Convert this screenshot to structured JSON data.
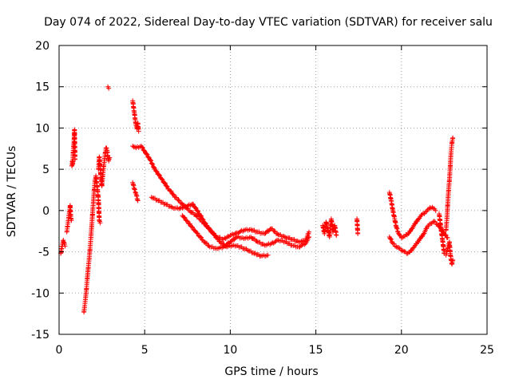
{
  "chart_data": {
    "type": "scatter",
    "title": "Day 074 of 2022, Sidereal Day-to-day VTEC variation (SDTVAR) for receiver salu",
    "xlabel": "GPS time / hours",
    "ylabel": "SDTVAR / TECUs",
    "xlim": [
      0,
      25
    ],
    "ylim": [
      -15,
      20
    ],
    "xticks": [
      0,
      5,
      10,
      15,
      20,
      25
    ],
    "xtick_labels": [
      "0",
      "5",
      "10",
      "15",
      "20",
      "25"
    ],
    "yticks": [
      -15,
      -10,
      -5,
      0,
      5,
      10,
      15,
      20
    ],
    "ytick_labels": [
      "-15",
      "-10",
      "-5",
      "0",
      "5",
      "10",
      "15",
      "20"
    ],
    "grid": true,
    "marker": "+",
    "series": [
      {
        "name": "SDTVAR",
        "color": "#ff0000",
        "segments": [
          [
            [
              0.1,
              -5.2
            ],
            [
              0.15,
              -4.6
            ],
            [
              0.2,
              -4.1
            ],
            [
              0.25,
              -3.6
            ],
            [
              0.3,
              -3.9
            ],
            [
              0.35,
              -4.3
            ]
          ],
          [
            [
              0.45,
              -2.6
            ],
            [
              0.5,
              -1.9
            ],
            [
              0.55,
              -1.0
            ],
            [
              0.6,
              -0.2
            ],
            [
              0.65,
              0.6
            ],
            [
              0.68,
              -0.7
            ],
            [
              0.72,
              -1.2
            ]
          ],
          [
            [
              0.75,
              5.4
            ],
            [
              0.78,
              6.0
            ],
            [
              0.8,
              5.6
            ],
            [
              0.82,
              7.0
            ],
            [
              0.85,
              7.8
            ],
            [
              0.88,
              8.7
            ],
            [
              0.9,
              9.8
            ],
            [
              0.93,
              6.2
            ]
          ],
          [
            [
              1.45,
              -12.3
            ],
            [
              1.5,
              -11.5
            ],
            [
              1.55,
              -10.5
            ],
            [
              1.6,
              -9.5
            ],
            [
              1.65,
              -8.2
            ],
            [
              1.7,
              -7.0
            ],
            [
              1.75,
              -6.0
            ],
            [
              1.8,
              -4.8
            ],
            [
              1.85,
              -3.5
            ],
            [
              1.9,
              -2.0
            ],
            [
              1.95,
              -0.5
            ],
            [
              2.0,
              1.0
            ],
            [
              2.05,
              2.5
            ],
            [
              2.1,
              3.6
            ],
            [
              2.15,
              4.2
            ],
            [
              2.2,
              3.4
            ],
            [
              2.25,
              2.5
            ],
            [
              2.3,
              1.2
            ],
            [
              2.35,
              -1.2
            ],
            [
              2.4,
              -1.5
            ]
          ],
          [
            [
              2.3,
              5.0
            ],
            [
              2.35,
              6.5
            ],
            [
              2.45,
              3.8
            ],
            [
              2.5,
              3.0
            ],
            [
              2.55,
              4.2
            ],
            [
              2.6,
              5.3
            ],
            [
              2.65,
              6.1
            ],
            [
              2.7,
              7.0
            ],
            [
              2.75,
              7.6
            ],
            [
              2.8,
              7.3
            ],
            [
              2.85,
              6.6
            ],
            [
              2.9,
              6.0
            ],
            [
              2.95,
              6.4
            ]
          ],
          [
            [
              2.85,
              15.0
            ],
            [
              2.9,
              14.8
            ]
          ],
          [
            [
              4.3,
              13.3
            ],
            [
              4.35,
              12.5
            ],
            [
              4.4,
              11.8
            ],
            [
              4.45,
              11.0
            ],
            [
              4.5,
              10.3
            ],
            [
              4.55,
              9.9
            ],
            [
              4.6,
              10.6
            ],
            [
              4.65,
              9.6
            ]
          ],
          [
            [
              4.3,
              7.8
            ],
            [
              4.5,
              7.6
            ],
            [
              4.8,
              7.8
            ],
            [
              5.0,
              7.2
            ],
            [
              5.3,
              6.2
            ],
            [
              5.6,
              5.0
            ],
            [
              6.0,
              3.8
            ],
            [
              6.4,
              2.6
            ],
            [
              6.8,
              1.6
            ],
            [
              7.2,
              0.8
            ],
            [
              7.6,
              0.0
            ],
            [
              8.0,
              -0.6
            ],
            [
              8.4,
              -1.4
            ],
            [
              8.8,
              -2.3
            ],
            [
              9.2,
              -3.2
            ],
            [
              9.6,
              -3.5
            ],
            [
              10.0,
              -3.0
            ],
            [
              10.4,
              -2.7
            ],
            [
              10.8,
              -2.4
            ],
            [
              11.2,
              -2.3
            ],
            [
              11.6,
              -2.6
            ],
            [
              12.0,
              -2.8
            ],
            [
              12.4,
              -2.2
            ],
            [
              12.8,
              -2.9
            ],
            [
              13.2,
              -3.2
            ],
            [
              13.6,
              -3.5
            ],
            [
              14.0,
              -3.8
            ],
            [
              14.4,
              -3.6
            ],
            [
              14.6,
              -2.6
            ]
          ],
          [
            [
              4.3,
              3.4
            ],
            [
              4.4,
              2.6
            ],
            [
              4.5,
              2.0
            ],
            [
              4.6,
              1.2
            ]
          ],
          [
            [
              5.4,
              1.6
            ],
            [
              5.8,
              1.2
            ],
            [
              6.2,
              0.8
            ],
            [
              6.6,
              0.4
            ],
            [
              7.0,
              0.2
            ],
            [
              7.4,
              0.5
            ],
            [
              7.8,
              0.8
            ],
            [
              8.2,
              -0.4
            ],
            [
              8.6,
              -1.8
            ],
            [
              9.0,
              -2.8
            ],
            [
              9.4,
              -3.8
            ],
            [
              9.8,
              -4.4
            ],
            [
              10.2,
              -4.2
            ],
            [
              10.6,
              -4.4
            ],
            [
              11.0,
              -4.8
            ],
            [
              11.4,
              -5.2
            ],
            [
              11.8,
              -5.5
            ],
            [
              12.2,
              -5.4
            ]
          ],
          [
            [
              7.2,
              -0.6
            ],
            [
              7.6,
              -1.6
            ],
            [
              8.0,
              -2.6
            ],
            [
              8.4,
              -3.6
            ],
            [
              8.8,
              -4.4
            ],
            [
              9.2,
              -4.6
            ],
            [
              9.6,
              -4.4
            ],
            [
              10.0,
              -3.8
            ],
            [
              10.4,
              -3.2
            ],
            [
              10.8,
              -3.4
            ],
            [
              11.2,
              -3.2
            ],
            [
              11.6,
              -3.8
            ],
            [
              12.0,
              -4.2
            ],
            [
              12.4,
              -4.0
            ],
            [
              12.8,
              -3.6
            ],
            [
              13.2,
              -3.8
            ],
            [
              13.6,
              -4.2
            ],
            [
              14.0,
              -4.4
            ],
            [
              14.4,
              -4.0
            ],
            [
              14.6,
              -3.2
            ]
          ],
          [
            [
              15.4,
              -1.8
            ],
            [
              15.5,
              -2.8
            ],
            [
              15.6,
              -1.4
            ],
            [
              15.7,
              -2.2
            ],
            [
              15.8,
              -3.2
            ],
            [
              15.9,
              -1.0
            ],
            [
              16.0,
              -2.6
            ],
            [
              16.1,
              -1.8
            ],
            [
              16.2,
              -3.0
            ]
          ],
          [
            [
              17.4,
              -1.0
            ],
            [
              17.45,
              -2.8
            ]
          ],
          [
            [
              19.3,
              2.2
            ],
            [
              19.4,
              1.2
            ],
            [
              19.5,
              0.0
            ],
            [
              19.6,
              -1.0
            ],
            [
              19.7,
              -2.0
            ],
            [
              19.8,
              -2.6
            ],
            [
              19.9,
              -3.0
            ],
            [
              20.0,
              -3.3
            ],
            [
              20.2,
              -3.1
            ],
            [
              20.4,
              -2.8
            ],
            [
              20.6,
              -2.2
            ],
            [
              20.8,
              -1.6
            ],
            [
              21.0,
              -1.0
            ],
            [
              21.2,
              -0.5
            ],
            [
              21.4,
              -0.2
            ],
            [
              21.6,
              0.2
            ],
            [
              21.8,
              0.4
            ],
            [
              22.0,
              0.0
            ]
          ],
          [
            [
              19.3,
              -3.2
            ],
            [
              19.5,
              -4.0
            ],
            [
              19.7,
              -4.4
            ],
            [
              19.9,
              -4.6
            ],
            [
              20.1,
              -4.9
            ],
            [
              20.3,
              -5.2
            ],
            [
              20.5,
              -5.0
            ],
            [
              20.7,
              -4.5
            ],
            [
              20.9,
              -4.0
            ],
            [
              21.1,
              -3.4
            ],
            [
              21.3,
              -2.8
            ],
            [
              21.5,
              -2.0
            ],
            [
              21.7,
              -1.6
            ],
            [
              21.9,
              -1.3
            ],
            [
              22.1,
              -1.7
            ],
            [
              22.3,
              -2.2
            ],
            [
              22.5,
              -2.8
            ],
            [
              22.7,
              -3.3
            ]
          ],
          [
            [
              22.2,
              -0.4
            ],
            [
              22.3,
              -2.0
            ],
            [
              22.4,
              -3.6
            ],
            [
              22.5,
              -5.2
            ],
            [
              22.6,
              -5.4
            ],
            [
              22.7,
              -4.6
            ],
            [
              22.8,
              -3.8
            ],
            [
              22.85,
              -5.2
            ],
            [
              22.9,
              -6.0
            ],
            [
              22.95,
              -6.5
            ],
            [
              23.0,
              -6.0
            ]
          ],
          [
            [
              22.6,
              -2.4
            ],
            [
              22.65,
              -1.2
            ],
            [
              22.7,
              0.6
            ],
            [
              22.75,
              2.4
            ],
            [
              22.8,
              3.6
            ],
            [
              22.85,
              5.4
            ],
            [
              22.9,
              7.2
            ],
            [
              22.95,
              8.2
            ],
            [
              23.0,
              8.8
            ]
          ]
        ]
      }
    ]
  }
}
